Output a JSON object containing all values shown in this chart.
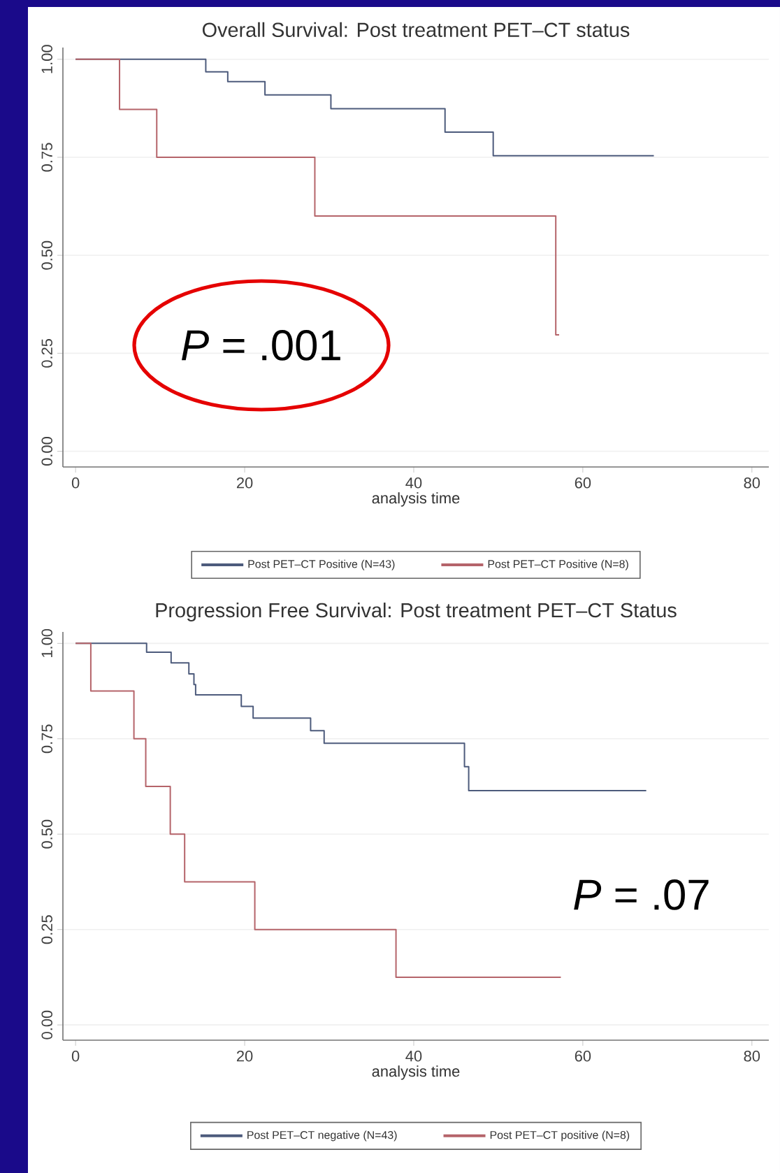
{
  "chart_data": [
    {
      "type": "step",
      "title": "Overall Survival: Post treatment PET–CT status",
      "xlabel": "analysis time",
      "xlim": [
        -1.5,
        82
      ],
      "ylim": [
        -0.04,
        1.03
      ],
      "xticks": [
        0,
        20,
        40,
        60,
        80
      ],
      "yticks": [
        {
          "value": 0,
          "label": "0.00"
        },
        {
          "value": 0.25,
          "label": "0.25"
        },
        {
          "value": 0.5,
          "label": "0.50"
        },
        {
          "value": 0.75,
          "label": "0.75"
        },
        {
          "value": 1,
          "label": "1.00"
        }
      ],
      "grid": "y",
      "legend": "bottom",
      "annotations": [
        "*P* = .001"
      ],
      "series": [
        {
          "name": "Post PET–CT Positive (N=43)",
          "color": "#4d5b7c",
          "x": [
            0,
            15.4,
            18.0,
            22.4,
            30.2,
            43.7,
            49.4,
            68.4
          ],
          "values": [
            1,
            0.968,
            0.943,
            0.909,
            0.874,
            0.814,
            0.754,
            0.754
          ]
        },
        {
          "name": "Post PET–CT Positive (N=8)",
          "color": "#b5646a",
          "x": [
            0,
            5.2,
            9.6,
            28.3,
            56.8,
            57.2
          ],
          "values": [
            1,
            0.872,
            0.75,
            0.6,
            0.297,
            0.297
          ]
        }
      ]
    },
    {
      "type": "step",
      "title": "Progression Free Survival: Post treatment PET–CT Status",
      "xlabel": "analysis time",
      "xlim": [
        -1.5,
        82
      ],
      "ylim": [
        -0.04,
        1.03
      ],
      "xticks": [
        0,
        20,
        40,
        60,
        80
      ],
      "yticks": [
        {
          "value": 0,
          "label": "0.00"
        },
        {
          "value": 0.25,
          "label": "0.25"
        },
        {
          "value": 0.5,
          "label": "0.50"
        },
        {
          "value": 0.75,
          "label": "0.75"
        },
        {
          "value": 1,
          "label": "1.00"
        }
      ],
      "grid": "y",
      "legend": "bottom",
      "annotations": [
        "*P* = .07"
      ],
      "series": [
        {
          "name": "Post PET–CT negative (N=43)",
          "color": "#4d5b7c",
          "x": [
            0,
            8.4,
            11.3,
            13.4,
            14.0,
            14.2,
            19.6,
            21.0,
            27.8,
            29.4,
            46.0,
            46.5,
            67.5
          ],
          "values": [
            1,
            0.977,
            0.949,
            0.92,
            0.892,
            0.865,
            0.835,
            0.804,
            0.771,
            0.738,
            0.677,
            0.614,
            0.614
          ]
        },
        {
          "name": "Post PET–CT positive (N=8)",
          "color": "#b5646a",
          "x": [
            0,
            1.8,
            6.9,
            8.3,
            11.2,
            12.9,
            21.2,
            37.9,
            57.4
          ],
          "values": [
            1,
            0.875,
            0.75,
            0.625,
            0.5,
            0.375,
            0.25,
            0.125,
            0.125
          ]
        }
      ]
    }
  ]
}
